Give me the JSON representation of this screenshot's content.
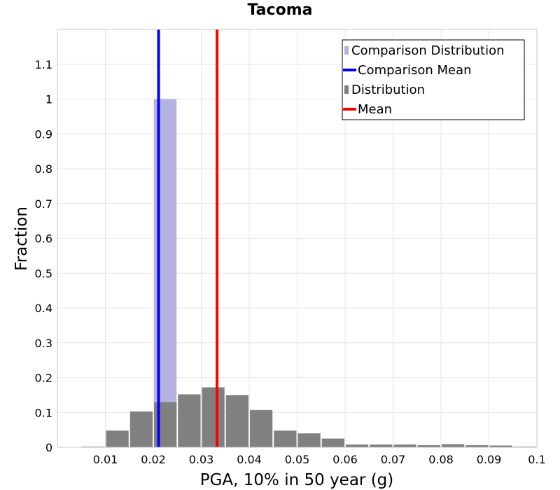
{
  "chart_data": {
    "type": "bar",
    "title": "Tacoma",
    "xlabel": "PGA, 10% in 50 year (g)",
    "ylabel": "Fraction",
    "xlim": [
      0.0,
      0.1
    ],
    "ylim": [
      0,
      1.2
    ],
    "xticks": [
      0.01,
      0.02,
      0.03,
      0.04,
      0.05,
      0.06,
      0.07,
      0.08,
      0.09,
      0.1
    ],
    "xtick_labels": [
      "0.01",
      "0.02",
      "0.03",
      "0.04",
      "0.05",
      "0.06",
      "0.07",
      "0.08",
      "0.09",
      "0.1"
    ],
    "yticks": [
      0,
      0.1,
      0.2,
      0.3,
      0.4,
      0.5,
      0.6,
      0.7,
      0.8,
      0.9,
      1,
      1.1
    ],
    "ytick_labels": [
      "0",
      "0.1",
      "0.2",
      "0.3",
      "0.4",
      "0.5",
      "0.6",
      "0.7",
      "0.8",
      "0.9",
      "1",
      "1.1"
    ],
    "grid": true,
    "legend_position": "top-right",
    "bin_width": 0.005,
    "series": [
      {
        "name": "Comparison Distribution",
        "kind": "histogram",
        "color": "#b3b3de",
        "bin_centers": [
          0.0225
        ],
        "values": [
          1.0
        ]
      },
      {
        "name": "Comparison Mean",
        "kind": "vline",
        "color": "#0000ff",
        "x": 0.0211
      },
      {
        "name": "Distribution",
        "kind": "histogram",
        "color": "#808080",
        "bin_centers": [
          0.0075,
          0.0125,
          0.0175,
          0.0225,
          0.0275,
          0.0325,
          0.0375,
          0.0425,
          0.0475,
          0.0525,
          0.0575,
          0.0625,
          0.0675,
          0.0725,
          0.0775,
          0.0825,
          0.0875,
          0.0925,
          0.0975
        ],
        "values": [
          0.002,
          0.048,
          0.103,
          0.13,
          0.152,
          0.172,
          0.15,
          0.107,
          0.048,
          0.04,
          0.025,
          0.008,
          0.008,
          0.008,
          0.006,
          0.009,
          0.006,
          0.005,
          0.002
        ]
      },
      {
        "name": "Mean",
        "kind": "vline",
        "color": "#ff0000",
        "x": 0.0333
      }
    ]
  }
}
